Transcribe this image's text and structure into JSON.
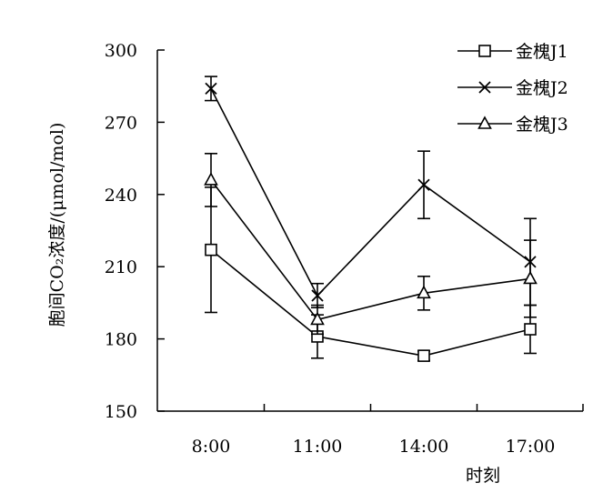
{
  "chart_data": {
    "type": "line",
    "title": "",
    "xlabel": "时刻",
    "ylabel": "胞间CO₂浓度/(μmol/mol)",
    "ylim": [
      150,
      300
    ],
    "yticks": [
      150,
      180,
      210,
      240,
      270,
      300
    ],
    "categories": [
      "8:00",
      "11:00",
      "14:00",
      "17:00"
    ],
    "grid": false,
    "legend_position": "top-right",
    "series": [
      {
        "name": "金槐J1",
        "marker": "square",
        "values": [
          217,
          181,
          173,
          184
        ],
        "error": [
          26,
          9,
          2,
          10
        ]
      },
      {
        "name": "金槐J2",
        "marker": "x",
        "values": [
          284,
          198,
          244,
          212
        ],
        "error": [
          5,
          5,
          14,
          18
        ]
      },
      {
        "name": "金槐J3",
        "marker": "triangle",
        "values": [
          246,
          188,
          199,
          205
        ],
        "error": [
          11,
          6,
          7,
          16
        ]
      }
    ]
  }
}
